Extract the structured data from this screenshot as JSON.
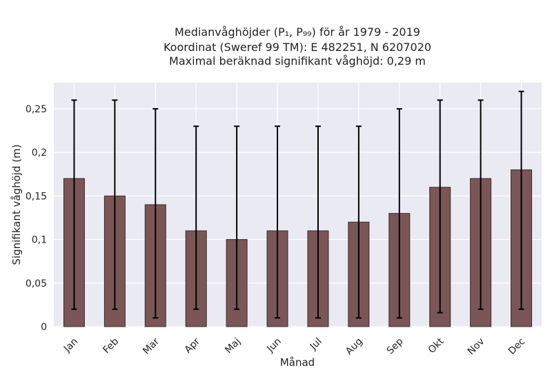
{
  "chart_data": {
    "type": "bar",
    "title_lines": [
      "Medianvåghöjder (P₁, P₉₉) för år 1979 - 2019",
      "Koordinat (Sweref 99 TM): E 482251, N 6207020",
      "Maximal beräknad signifikant våghöjd: 0,29 m"
    ],
    "xlabel": "Månad",
    "ylabel": "Signifikant våghöjd (m)",
    "categories": [
      "Jan",
      "Feb",
      "Mar",
      "Apr",
      "Maj",
      "Jun",
      "Jul",
      "Aug",
      "Sep",
      "Okt",
      "Nov",
      "Dec"
    ],
    "values": [
      0.17,
      0.15,
      0.14,
      0.11,
      0.1,
      0.11,
      0.11,
      0.12,
      0.13,
      0.16,
      0.17,
      0.18
    ],
    "error_low": [
      0.02,
      0.02,
      0.01,
      0.02,
      0.02,
      0.01,
      0.01,
      0.01,
      0.01,
      0.016,
      0.02,
      0.02
    ],
    "error_high": [
      0.26,
      0.26,
      0.25,
      0.23,
      0.23,
      0.23,
      0.23,
      0.23,
      0.25,
      0.26,
      0.26,
      0.27
    ],
    "ylim": [
      0,
      0.28
    ],
    "yticks": [
      0,
      0.05,
      0.1,
      0.15,
      0.2,
      0.25
    ],
    "ytick_labels": [
      "0",
      "0,05",
      "0,1",
      "0,15",
      "0,2",
      "0,25"
    ],
    "grid": true,
    "colors": {
      "bar_fill": "#7a5656",
      "bar_edge": "#3d2a2a",
      "error_bar": "#000000",
      "plot_background": "#eaeaf2",
      "grid": "#ffffff"
    }
  }
}
